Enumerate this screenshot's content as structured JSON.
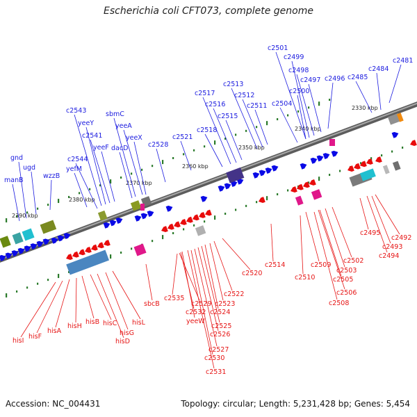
{
  "title": "Escherichia coli CFT073, complete genome",
  "footer": {
    "accession": "Accession: NC_004431",
    "summary": "Topology: circular; Length: 5,231,428 bp; Genes: 5,454"
  },
  "colors": {
    "forward_label": "#1a1adf",
    "reverse_label": "#e61414",
    "forward_gene": "#0a0ae6",
    "reverse_gene": "#e80c0c",
    "backbone": "#808080",
    "tick": "#2a7a2a"
  },
  "scale_labels": [
    "2330 kbp",
    "2340 kbp",
    "2350 kbp",
    "2360 kbp",
    "2370 kbp",
    "2380 kbp",
    "2390 kbp"
  ],
  "forward_labels": [
    "c2481",
    "c2484",
    "c2485",
    "c2496",
    "c2497",
    "c2498",
    "c2499",
    "c2501",
    "c2500",
    "c2504",
    "c2511",
    "c2512",
    "c2513",
    "c2515",
    "c2516",
    "c2517",
    "c2518",
    "c2521",
    "c2528",
    "yeeX",
    "yeeA",
    "sbmC",
    "dacD",
    "yeeF",
    "c2541",
    "yeeY",
    "c2543",
    "c2544",
    "yefM",
    "wzzB",
    "ugd",
    "gnd",
    "manB"
  ],
  "reverse_labels": [
    "c2492",
    "c2493",
    "c2494",
    "c2495",
    "c2502",
    "c2503",
    "c2505",
    "c2506",
    "c2508",
    "c2509",
    "c2510",
    "c2514",
    "c2520",
    "c2522",
    "c2523",
    "c2524",
    "c2525",
    "c2526",
    "c2527",
    "c2530",
    "c2531",
    "yeeW",
    "c2532",
    "c2529",
    "c2535",
    "sbcB",
    "hisL",
    "hisG",
    "hisD",
    "hisC",
    "hisB",
    "hisH",
    "hisA",
    "hisF",
    "hisI"
  ]
}
